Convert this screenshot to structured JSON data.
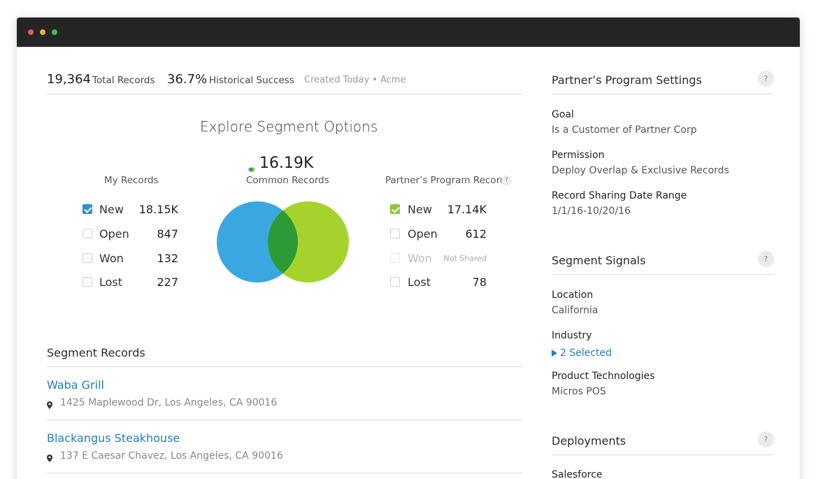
{
  "stats": {
    "total_value": "19,364",
    "total_label": "Total Records",
    "success_value": "36.7%",
    "success_label": "Historical Success",
    "meta": "Created Today • Acme"
  },
  "explore": {
    "heading": "Explore Segment Options",
    "common_value": "16.19K",
    "common_label": "Common Records",
    "my_records": {
      "title": "My Records",
      "rows": [
        {
          "label": "New",
          "value": "18.15K",
          "checked": true
        },
        {
          "label": "Open",
          "value": "847",
          "checked": false
        },
        {
          "label": "Won",
          "value": "132",
          "checked": false
        },
        {
          "label": "Lost",
          "value": "227",
          "checked": false
        }
      ]
    },
    "partner_records": {
      "title": "Partner’s Program Records",
      "help": "?",
      "rows": [
        {
          "label": "New",
          "value": "17.14K",
          "checked": true
        },
        {
          "label": "Open",
          "value": "612",
          "checked": false
        },
        {
          "label": "Won",
          "value": "Not Shared",
          "checked": false,
          "disabled": true
        },
        {
          "label": "Lost",
          "value": "78",
          "checked": false
        }
      ]
    },
    "colors": {
      "mine": "#3aa8e0",
      "partner": "#a6d22e",
      "overlap": "#2c9a36"
    }
  },
  "segment_records": {
    "title": "Segment Records",
    "items": [
      {
        "name": "Waba Grill",
        "address": "1425 Maplewood Dr, Los Angeles, CA 90016"
      },
      {
        "name": "Blackangus Steakhouse",
        "address": "137 E Caesar Chavez, Los Angeles, CA 90016"
      }
    ]
  },
  "sidebar": {
    "program_settings": {
      "title": "Partner’s Program Settings",
      "help": "?",
      "fields": [
        {
          "label": "Goal",
          "value": "Is a Customer of Partner Corp"
        },
        {
          "label": "Permission",
          "value": "Deploy Overlap & Exclusive Records"
        },
        {
          "label": "Record Sharing Date Range",
          "value": "1/1/16-10/20/16"
        }
      ]
    },
    "segment_signals": {
      "title": "Segment Signals",
      "help": "?",
      "location_label": "Location",
      "location_value": "California",
      "industry_label": "Industry",
      "industry_value": "2 Selected",
      "tech_label": "Product Technologies",
      "tech_value": "Micros POS"
    },
    "deployments": {
      "title": "Deployments",
      "help": "?",
      "first_item": "Salesforce"
    }
  }
}
